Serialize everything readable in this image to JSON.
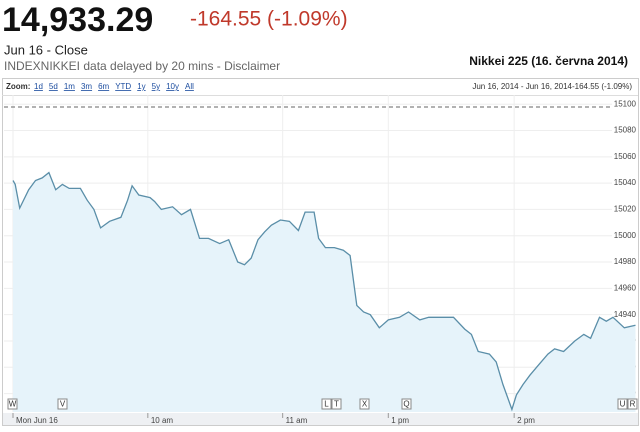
{
  "header": {
    "price": "14,933.29",
    "change": "-164.55 (-1.09%)",
    "date": "Jun 16 - Close",
    "source": "INDEXNIKKEI data delayed by 20 mins - Disclaimer",
    "caption": "Nikkei 225 (16. června 2014)"
  },
  "toolbar": {
    "zoom_label": "Zoom:",
    "zoom_options": [
      "1d",
      "5d",
      "1m",
      "3m",
      "6m",
      "YTD",
      "1y",
      "5y",
      "10y",
      "All"
    ],
    "range": "Jun 16, 2014 - Jun 16, 2014",
    "change": "-164.55 (-1.09%)"
  },
  "events": [
    "W",
    "V",
    "L",
    "T",
    "X",
    "Q",
    "U",
    "R"
  ],
  "chart_data": {
    "type": "line",
    "x": [
      0,
      1,
      3,
      7,
      10,
      13,
      16,
      19,
      22,
      25,
      30,
      33,
      36,
      39,
      43,
      48,
      51,
      53,
      56,
      61,
      63,
      66,
      71,
      75,
      79,
      83,
      87,
      92,
      96,
      100,
      103,
      106,
      109,
      112,
      115,
      119,
      123,
      127,
      130,
      134,
      136,
      139,
      143,
      147,
      150,
      153,
      156,
      159,
      163,
      167,
      172,
      176,
      181,
      185,
      190,
      196,
      201,
      204,
      207,
      212,
      215,
      218,
      222,
      224,
      227,
      230,
      234,
      238,
      241,
      245,
      250,
      254,
      257,
      261,
      264,
      267,
      272,
      277
    ],
    "series": [
      {
        "name": "Nikkei 225",
        "color": "#5a8ea8",
        "fill": "#e6f3fa",
        "values": [
          15042,
          15039,
          15021,
          15035,
          15042,
          15044,
          15048,
          15035,
          15039,
          15036,
          15036,
          15027,
          15020,
          15006,
          15011,
          15014,
          15027,
          15038,
          15031,
          15029,
          15026,
          15020,
          15022,
          15016,
          15020,
          14998,
          14998,
          14994,
          14997,
          14980,
          14978,
          14983,
          14997,
          15003,
          15008,
          15012,
          15011,
          15004,
          15018,
          15018,
          14998,
          14991,
          14991,
          14989,
          14985,
          14947,
          14942,
          14940,
          14930,
          14936,
          14938,
          14942,
          14936,
          14938,
          14938,
          14938,
          14929,
          14925,
          14912,
          14910,
          14904,
          14887,
          14868,
          14879,
          14887,
          14894,
          14902,
          14910,
          14914,
          14912,
          14920,
          14925,
          14922,
          14938,
          14935,
          14938,
          14930,
          14932
        ]
      }
    ],
    "previous_close": 15097.84,
    "xlim": [
      -4,
      279
    ],
    "xticks": [
      {
        "value": 0,
        "label": "Mon Jun 16"
      },
      {
        "value": 60,
        "label": "10 am"
      },
      {
        "value": 120,
        "label": "11 am"
      },
      {
        "value": 167,
        "label": "1 pm"
      },
      {
        "value": 223,
        "label": "2 pm"
      }
    ],
    "ylim": [
      14866,
      15107
    ],
    "yticks": [
      14880,
      14900,
      14920,
      14940,
      14960,
      14980,
      15000,
      15020,
      15040,
      15060,
      15080,
      15100
    ],
    "grid": true
  }
}
